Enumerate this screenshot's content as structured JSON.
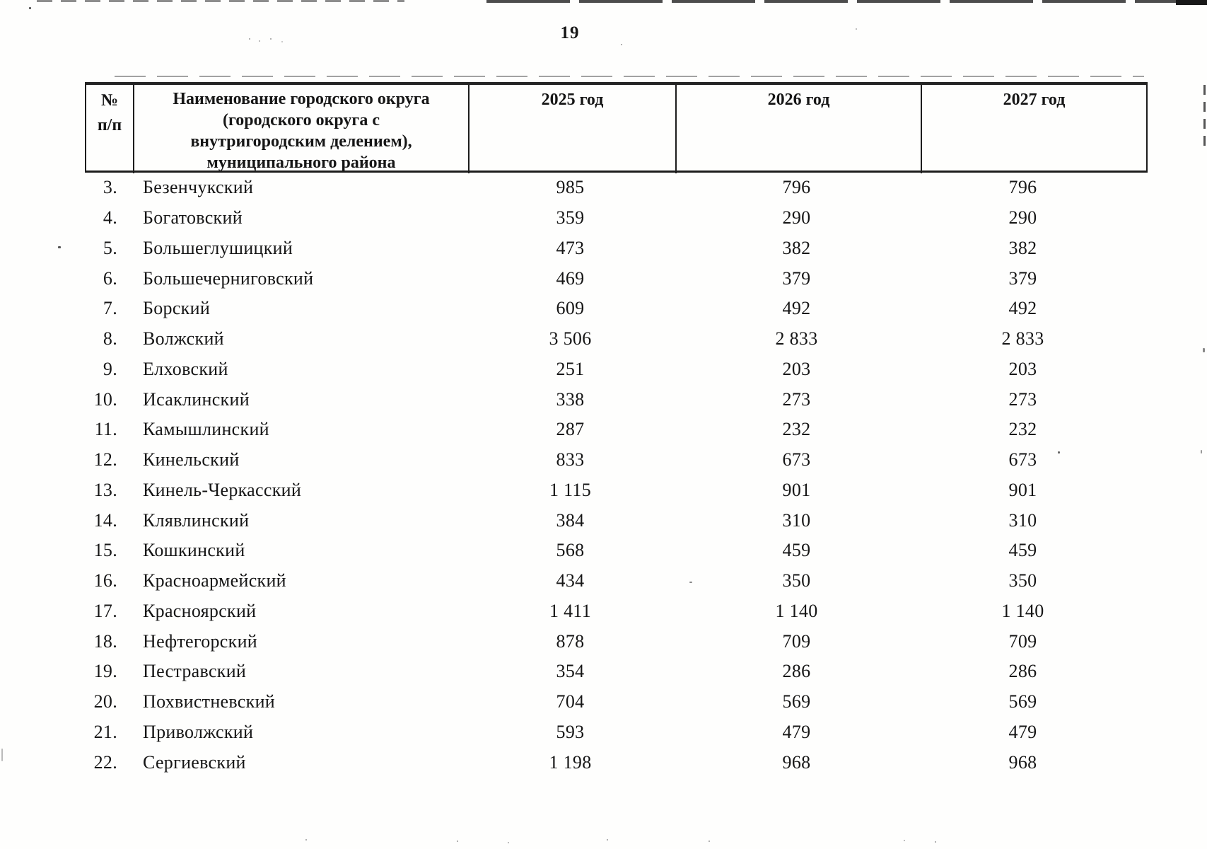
{
  "page": {
    "number": "19"
  },
  "table": {
    "header": {
      "num_line1": "№",
      "num_line2": "п/п",
      "name_line1": "Наименование городского округа",
      "name_line2": "(городского округа с",
      "name_line3": "внутригородским делением),",
      "name_line4": "муниципального района",
      "year_2025": "2025 год",
      "year_2026": "2026 год",
      "year_2027": "2027 год"
    },
    "rows": [
      {
        "num": "3.",
        "name": "Безенчукский",
        "y2025": "985",
        "y2026": "796",
        "y2027": "796"
      },
      {
        "num": "4.",
        "name": "Богатовский",
        "y2025": "359",
        "y2026": "290",
        "y2027": "290"
      },
      {
        "num": "5.",
        "name": "Большеглушицкий",
        "y2025": "473",
        "y2026": "382",
        "y2027": "382"
      },
      {
        "num": "6.",
        "name": "Большечерниговский",
        "y2025": "469",
        "y2026": "379",
        "y2027": "379"
      },
      {
        "num": "7.",
        "name": "Борский",
        "y2025": "609",
        "y2026": "492",
        "y2027": "492"
      },
      {
        "num": "8.",
        "name": "Волжский",
        "y2025": "3 506",
        "y2026": "2 833",
        "y2027": "2 833"
      },
      {
        "num": "9.",
        "name": "Елховский",
        "y2025": "251",
        "y2026": "203",
        "y2027": "203"
      },
      {
        "num": "10.",
        "name": "Исаклинский",
        "y2025": "338",
        "y2026": "273",
        "y2027": "273"
      },
      {
        "num": "11.",
        "name": "Камышлинский",
        "y2025": "287",
        "y2026": "232",
        "y2027": "232"
      },
      {
        "num": "12.",
        "name": "Кинельский",
        "y2025": "833",
        "y2026": "673",
        "y2027": "673"
      },
      {
        "num": "13.",
        "name": "Кинель-Черкасский",
        "y2025": "1 115",
        "y2026": "901",
        "y2027": "901"
      },
      {
        "num": "14.",
        "name": "Клявлинский",
        "y2025": "384",
        "y2026": "310",
        "y2027": "310"
      },
      {
        "num": "15.",
        "name": "Кошкинский",
        "y2025": "568",
        "y2026": "459",
        "y2027": "459"
      },
      {
        "num": "16.",
        "name": "Красноармейский",
        "y2025": "434",
        "y2026": "350",
        "y2027": "350"
      },
      {
        "num": "17.",
        "name": "Красноярский",
        "y2025": "1 411",
        "y2026": "1 140",
        "y2027": "1 140"
      },
      {
        "num": "18.",
        "name": "Нефтегорский",
        "y2025": "878",
        "y2026": "709",
        "y2027": "709"
      },
      {
        "num": "19.",
        "name": "Пестравский",
        "y2025": "354",
        "y2026": "286",
        "y2027": "286"
      },
      {
        "num": "20.",
        "name": "Похвистневский",
        "y2025": "704",
        "y2026": "569",
        "y2027": "569"
      },
      {
        "num": "21.",
        "name": "Приволжский",
        "y2025": "593",
        "y2026": "479",
        "y2027": "479"
      },
      {
        "num": "22.",
        "name": "Сергиевский",
        "y2025": "1 198",
        "y2026": "968",
        "y2027": "968"
      }
    ]
  }
}
